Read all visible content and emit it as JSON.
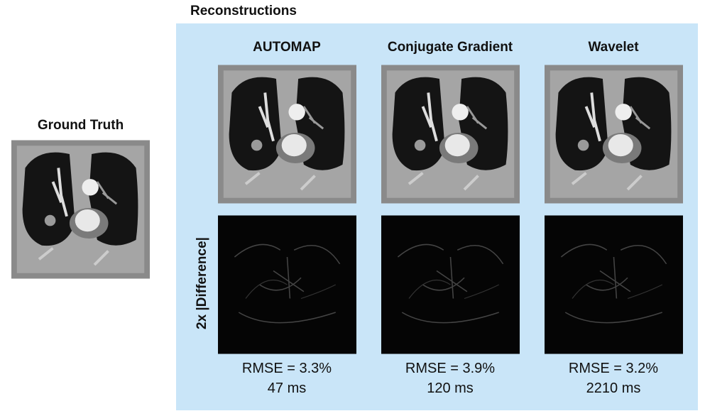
{
  "ground_truth": {
    "title": "Ground Truth"
  },
  "reconstructions": {
    "title": "Reconstructions",
    "row_label": "2x |Difference|",
    "methods": [
      {
        "name": "AUTOMAP",
        "rmse": "RMSE = 3.3%",
        "time": "47 ms"
      },
      {
        "name": "Conjugate Gradient",
        "rmse": "RMSE = 3.9%",
        "time": "120 ms"
      },
      {
        "name": "Wavelet",
        "rmse": "RMSE = 3.2%",
        "time": "2210 ms"
      }
    ]
  }
}
